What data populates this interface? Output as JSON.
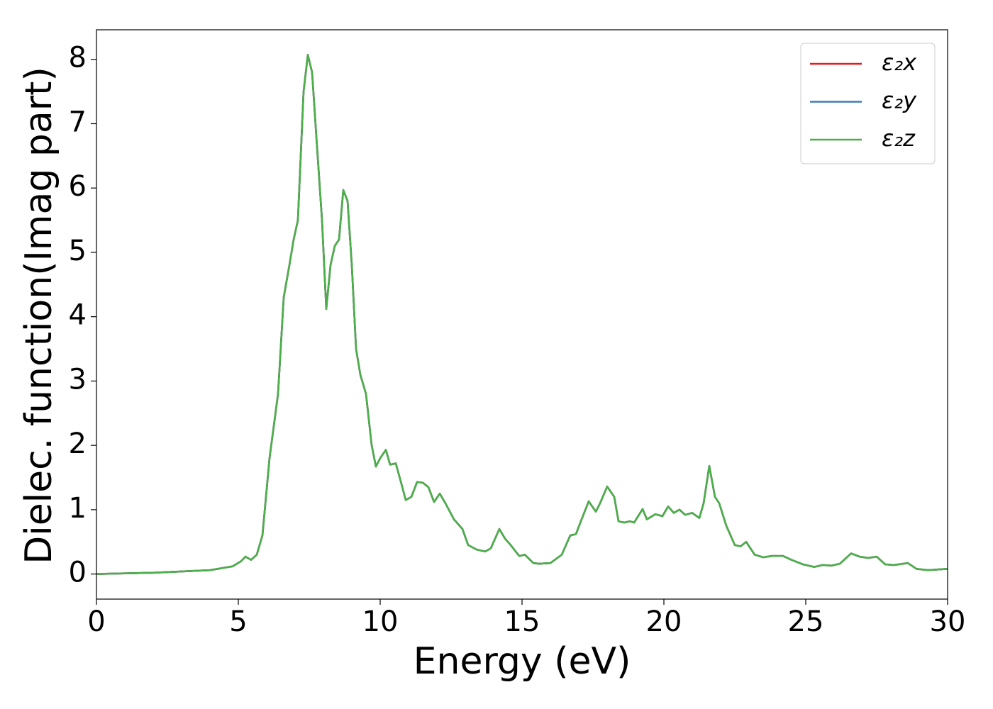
{
  "chart_data": {
    "type": "line",
    "xlabel": "Energy (eV)",
    "ylabel": "Dielec. function(Imag part)",
    "x": [
      0,
      2,
      4,
      4.8,
      5.1,
      5.25,
      5.45,
      5.65,
      5.85,
      6.1,
      6.4,
      6.6,
      6.8,
      6.95,
      7.1,
      7.3,
      7.45,
      7.6,
      7.75,
      7.95,
      8.1,
      8.25,
      8.4,
      8.55,
      8.7,
      8.85,
      9.0,
      9.15,
      9.3,
      9.5,
      9.7,
      9.85,
      10.0,
      10.2,
      10.35,
      10.55,
      10.75,
      10.9,
      11.1,
      11.3,
      11.5,
      11.7,
      11.9,
      12.1,
      12.3,
      12.6,
      12.9,
      13.1,
      13.4,
      13.7,
      13.9,
      14.2,
      14.4,
      14.6,
      14.9,
      15.1,
      15.4,
      15.6,
      16.0,
      16.4,
      16.7,
      16.9,
      17.1,
      17.35,
      17.6,
      17.75,
      18.0,
      18.25,
      18.4,
      18.6,
      18.8,
      18.95,
      19.25,
      19.4,
      19.7,
      19.95,
      20.15,
      20.35,
      20.55,
      20.75,
      21.0,
      21.25,
      21.4,
      21.6,
      21.8,
      21.95,
      22.2,
      22.5,
      22.7,
      22.9,
      23.2,
      23.5,
      23.8,
      24.2,
      24.5,
      24.9,
      25.3,
      25.6,
      25.9,
      26.2,
      26.6,
      26.9,
      27.2,
      27.5,
      27.8,
      28.1,
      28.6,
      28.9,
      29.3,
      30
    ],
    "series": [
      {
        "name": "ε₂x",
        "color": "#e41a1c",
        "values": [
          0.0,
          0.02,
          0.06,
          0.12,
          0.2,
          0.27,
          0.22,
          0.3,
          0.6,
          1.8,
          2.8,
          4.3,
          4.8,
          5.2,
          5.5,
          7.5,
          8.07,
          7.8,
          6.8,
          5.5,
          4.12,
          4.8,
          5.1,
          5.2,
          5.97,
          5.8,
          4.8,
          3.5,
          3.1,
          2.8,
          2.0,
          1.67,
          1.8,
          1.93,
          1.7,
          1.72,
          1.4,
          1.15,
          1.2,
          1.43,
          1.42,
          1.35,
          1.12,
          1.25,
          1.1,
          0.85,
          0.7,
          0.45,
          0.38,
          0.35,
          0.4,
          0.7,
          0.55,
          0.45,
          0.28,
          0.3,
          0.17,
          0.16,
          0.17,
          0.3,
          0.6,
          0.62,
          0.85,
          1.13,
          0.97,
          1.1,
          1.36,
          1.2,
          0.82,
          0.8,
          0.82,
          0.8,
          1.01,
          0.85,
          0.93,
          0.9,
          1.05,
          0.95,
          1.0,
          0.92,
          0.95,
          0.87,
          1.1,
          1.68,
          1.2,
          1.1,
          0.75,
          0.45,
          0.43,
          0.5,
          0.3,
          0.26,
          0.28,
          0.28,
          0.22,
          0.15,
          0.11,
          0.14,
          0.13,
          0.16,
          0.32,
          0.27,
          0.25,
          0.27,
          0.15,
          0.14,
          0.17,
          0.08,
          0.06,
          0.08
        ]
      },
      {
        "name": "ε₂y",
        "color": "#377eb8",
        "values": [
          0.0,
          0.02,
          0.06,
          0.12,
          0.2,
          0.27,
          0.22,
          0.3,
          0.6,
          1.8,
          2.8,
          4.3,
          4.8,
          5.2,
          5.5,
          7.5,
          8.07,
          7.8,
          6.8,
          5.5,
          4.12,
          4.8,
          5.1,
          5.2,
          5.97,
          5.8,
          4.8,
          3.5,
          3.1,
          2.8,
          2.0,
          1.67,
          1.8,
          1.93,
          1.7,
          1.72,
          1.4,
          1.15,
          1.2,
          1.43,
          1.42,
          1.35,
          1.12,
          1.25,
          1.1,
          0.85,
          0.7,
          0.45,
          0.38,
          0.35,
          0.4,
          0.7,
          0.55,
          0.45,
          0.28,
          0.3,
          0.17,
          0.16,
          0.17,
          0.3,
          0.6,
          0.62,
          0.85,
          1.13,
          0.97,
          1.1,
          1.36,
          1.2,
          0.82,
          0.8,
          0.82,
          0.8,
          1.01,
          0.85,
          0.93,
          0.9,
          1.05,
          0.95,
          1.0,
          0.92,
          0.95,
          0.87,
          1.1,
          1.68,
          1.2,
          1.1,
          0.75,
          0.45,
          0.43,
          0.5,
          0.3,
          0.26,
          0.28,
          0.28,
          0.22,
          0.15,
          0.11,
          0.14,
          0.13,
          0.16,
          0.32,
          0.27,
          0.25,
          0.27,
          0.15,
          0.14,
          0.17,
          0.08,
          0.06,
          0.08
        ]
      },
      {
        "name": "ε₂z",
        "color": "#4daf4a",
        "values": [
          0.0,
          0.02,
          0.06,
          0.12,
          0.2,
          0.27,
          0.22,
          0.3,
          0.6,
          1.8,
          2.8,
          4.3,
          4.8,
          5.2,
          5.5,
          7.5,
          8.07,
          7.8,
          6.8,
          5.5,
          4.12,
          4.8,
          5.1,
          5.2,
          5.97,
          5.8,
          4.8,
          3.5,
          3.1,
          2.8,
          2.0,
          1.67,
          1.8,
          1.93,
          1.7,
          1.72,
          1.4,
          1.15,
          1.2,
          1.43,
          1.42,
          1.35,
          1.12,
          1.25,
          1.1,
          0.85,
          0.7,
          0.45,
          0.38,
          0.35,
          0.4,
          0.7,
          0.55,
          0.45,
          0.28,
          0.3,
          0.17,
          0.16,
          0.17,
          0.3,
          0.6,
          0.62,
          0.85,
          1.13,
          0.97,
          1.1,
          1.36,
          1.2,
          0.82,
          0.8,
          0.82,
          0.8,
          1.01,
          0.85,
          0.93,
          0.9,
          1.05,
          0.95,
          1.0,
          0.92,
          0.95,
          0.87,
          1.1,
          1.68,
          1.2,
          1.1,
          0.75,
          0.45,
          0.43,
          0.5,
          0.3,
          0.26,
          0.28,
          0.28,
          0.22,
          0.15,
          0.11,
          0.14,
          0.13,
          0.16,
          0.32,
          0.27,
          0.25,
          0.27,
          0.15,
          0.14,
          0.17,
          0.08,
          0.06,
          0.08
        ]
      }
    ],
    "xlim": [
      0,
      30
    ],
    "xticks": [
      0,
      5,
      10,
      15,
      20,
      25,
      30
    ],
    "ylim": [
      -0.39,
      8.46
    ],
    "yticks": [
      0,
      1,
      2,
      3,
      4,
      5,
      6,
      7,
      8
    ],
    "grid": false,
    "legend": "upper right"
  }
}
